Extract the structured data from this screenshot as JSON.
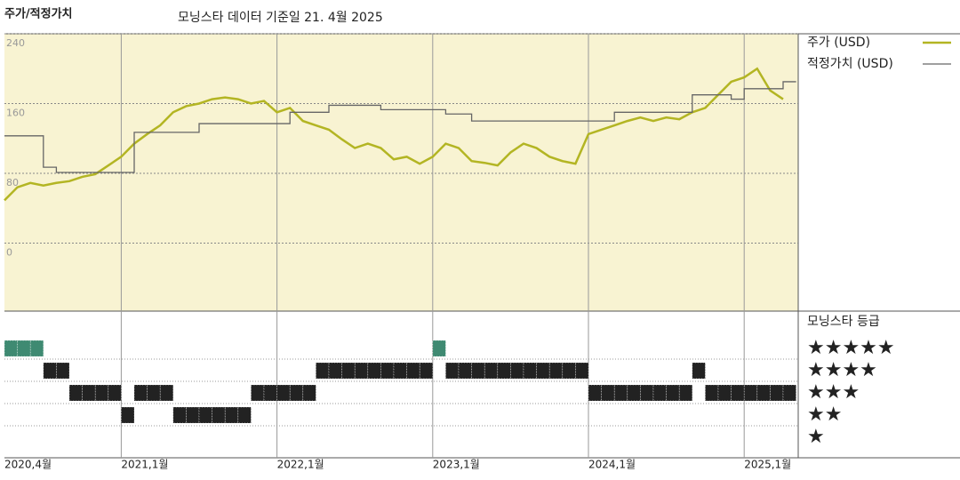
{
  "chart_data": [
    {
      "type": "line",
      "title": "주가/적정가치",
      "subtitle": "모닝스타 데이터 기준일 21. 4월 2025",
      "x": [
        "2020-04",
        "2020-05",
        "2020-06",
        "2020-07",
        "2020-08",
        "2020-09",
        "2020-10",
        "2020-11",
        "2020-12",
        "2021-01",
        "2021-02",
        "2021-03",
        "2021-04",
        "2021-05",
        "2021-06",
        "2021-07",
        "2021-08",
        "2021-09",
        "2021-10",
        "2021-11",
        "2021-12",
        "2022-01",
        "2022-02",
        "2022-03",
        "2022-04",
        "2022-05",
        "2022-06",
        "2022-07",
        "2022-08",
        "2022-09",
        "2022-10",
        "2022-11",
        "2022-12",
        "2023-01",
        "2023-02",
        "2023-03",
        "2023-04",
        "2023-05",
        "2023-06",
        "2023-07",
        "2023-08",
        "2023-09",
        "2023-10",
        "2023-11",
        "2023-12",
        "2024-01",
        "2024-02",
        "2024-03",
        "2024-04",
        "2024-05",
        "2024-06",
        "2024-07",
        "2024-08",
        "2024-09",
        "2024-10",
        "2024-11",
        "2024-12",
        "2025-01",
        "2025-02",
        "2025-03",
        "2025-04"
      ],
      "series": [
        {
          "name": "주가 (USD)",
          "color": "#b3b523",
          "step": false,
          "values": [
            49,
            64,
            69,
            66,
            69,
            71,
            76,
            79,
            89,
            99,
            114,
            125,
            135,
            150,
            157,
            160,
            165,
            167,
            165,
            160,
            163,
            150,
            155,
            140,
            135,
            130,
            119,
            109,
            114,
            109,
            96,
            99,
            91,
            99,
            114,
            109,
            94,
            92,
            89,
            104,
            114,
            109,
            99,
            94,
            91,
            125,
            130,
            135,
            140,
            144,
            140,
            144,
            142,
            150,
            155,
            170,
            185,
            190,
            200,
            175,
            165
          ]
        },
        {
          "name": "적정가치 (USD)",
          "color": "#666666",
          "step": true,
          "values": [
            123,
            123,
            123,
            87,
            81,
            81,
            81,
            81,
            81,
            81,
            127,
            127,
            127,
            127,
            127,
            137,
            137,
            137,
            137,
            137,
            137,
            137,
            150,
            150,
            150,
            158,
            158,
            158,
            158,
            153,
            153,
            153,
            153,
            153,
            148,
            148,
            140,
            140,
            140,
            140,
            140,
            140,
            140,
            140,
            140,
            140,
            140,
            150,
            150,
            150,
            150,
            150,
            150,
            170,
            170,
            170,
            165,
            177,
            177,
            177,
            185
          ]
        }
      ],
      "ylim": [
        -78,
        240
      ],
      "yticks": [
        0,
        80,
        160,
        240
      ],
      "grid": true,
      "xticks": [
        {
          "value": "2020-04",
          "label": "2020,4월"
        },
        {
          "value": "2021-01",
          "label": "2021,1월"
        },
        {
          "value": "2022-01",
          "label": "2022,1월"
        },
        {
          "value": "2023-01",
          "label": "2023,1월"
        },
        {
          "value": "2024-01",
          "label": "2024,1월"
        },
        {
          "value": "2025-01",
          "label": "2025,1월"
        }
      ]
    },
    {
      "type": "rating",
      "title": "모닝스타 등급",
      "levels": [
        5,
        4,
        3,
        2,
        1
      ],
      "level_labels": [
        "★★★★★",
        "★★★★",
        "★★★",
        "★★",
        "★"
      ],
      "colors": {
        "5": "#3f8a72",
        "4": "#222222",
        "3": "#222222",
        "2": "#222222",
        "1": "#222222"
      },
      "values": [
        5,
        5,
        5,
        4,
        4,
        3,
        3,
        3,
        3,
        2,
        3,
        3,
        3,
        2,
        2,
        2,
        2,
        2,
        2,
        3,
        3,
        3,
        3,
        3,
        4,
        4,
        4,
        4,
        4,
        4,
        4,
        4,
        4,
        5,
        4,
        4,
        4,
        4,
        4,
        4,
        4,
        4,
        4,
        4,
        4,
        3,
        3,
        3,
        3,
        3,
        3,
        3,
        3,
        4,
        3,
        3,
        3,
        3,
        3,
        3,
        3
      ]
    }
  ]
}
